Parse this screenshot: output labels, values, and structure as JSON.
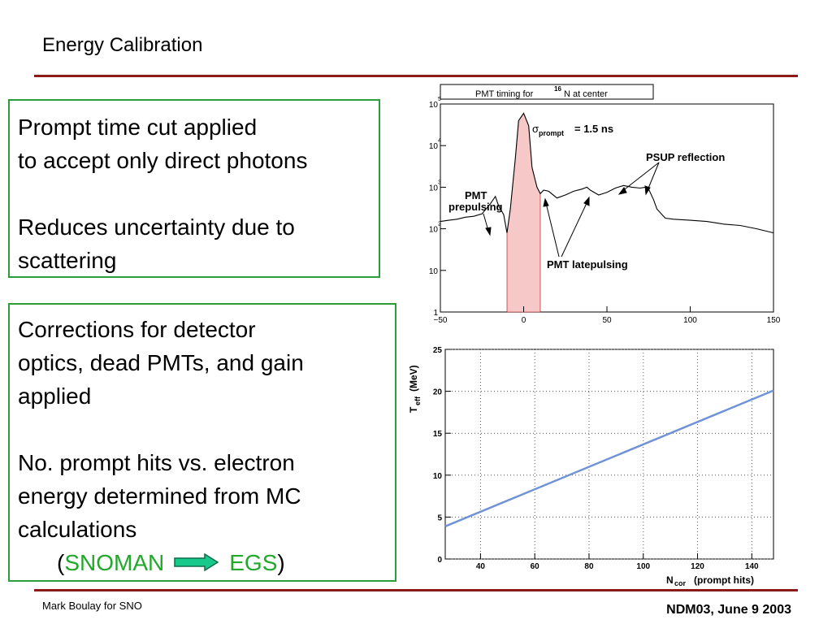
{
  "slide": {
    "title": "Energy Calibration",
    "footer_left": "Mark Boulay for SNO",
    "footer_right": "NDM03, June 9 2003"
  },
  "box1": {
    "line1": "Prompt time cut applied",
    "line2": "to accept only direct photons",
    "line3": "Reduces uncertainty due to",
    "line4": "scattering"
  },
  "box2": {
    "line1": "Corrections for detector",
    "line2": "optics, dead PMTs, and gain",
    "line3": "applied",
    "line4": "No. prompt hits vs. electron",
    "line5": "energy determined from MC",
    "line6": "calculations",
    "open_paren": "(",
    "from": "SNOMAN",
    "to": "EGS",
    "close_paren": ")"
  },
  "colors": {
    "accent_rule": "#8b1a1a",
    "box_border": "#2e9c3a",
    "highlight_text": "#22a82a",
    "arrow_fill": "#17c98a",
    "fit_line": "#6f93d6"
  },
  "chart_data": [
    {
      "type": "line",
      "title": "PMT timing for ¹⁶N at center",
      "title_pre": "PMT timing for",
      "title_sup": "16",
      "title_post": "N at center",
      "xlim": [
        -50,
        150
      ],
      "ylim": [
        1,
        100000
      ],
      "log_y": true,
      "x_ticks": [
        "−50",
        "0",
        "50",
        "100",
        "150"
      ],
      "y_ticks": [
        {
          "base": "10",
          "exp": "5"
        },
        {
          "base": "10",
          "exp": "4"
        },
        {
          "base": "10",
          "exp": "3"
        },
        {
          "base": "10",
          "exp": "2"
        },
        {
          "base": "10",
          "exp": ""
        },
        {
          "base": "1",
          "exp": ""
        }
      ],
      "prompt_window": [
        -10,
        10
      ],
      "series": [
        {
          "x": [
            -50,
            -45,
            -40,
            -35,
            -30,
            -25,
            -20,
            -17,
            -15,
            -12,
            -10,
            -8,
            -5,
            -3,
            0,
            3,
            5,
            8,
            10,
            12,
            15,
            20,
            25,
            30,
            35,
            38,
            40,
            45,
            50,
            55,
            60,
            65,
            70,
            73,
            75,
            78,
            80,
            85,
            90,
            100,
            110,
            120,
            130,
            140,
            150
          ],
          "y": [
            150,
            160,
            170,
            190,
            200,
            230,
            400,
            600,
            350,
            220,
            80,
            300,
            5000,
            40000,
            60000,
            30000,
            3000,
            1000,
            700,
            850,
            800,
            550,
            650,
            800,
            900,
            1000,
            850,
            650,
            750,
            950,
            1100,
            1000,
            950,
            1000,
            900,
            500,
            300,
            180,
            170,
            160,
            150,
            130,
            120,
            100,
            80
          ]
        }
      ],
      "annotations": {
        "sigma_symbol": "σ",
        "sigma_sub": "prompt",
        "sigma_value": "= 1.5 ns",
        "psup": "PSUP reflection",
        "prepulse_1": "PMT",
        "prepulse_2": "prepulsing",
        "latepulse": "PMT latepulsing"
      }
    },
    {
      "type": "line",
      "xlim": [
        27,
        148
      ],
      "ylim": [
        0,
        25
      ],
      "x_ticks": [
        "40",
        "60",
        "80",
        "100",
        "120",
        "140"
      ],
      "y_ticks": [
        "25",
        "20",
        "15",
        "10",
        "5",
        "0"
      ],
      "grid": true,
      "xlabel_main": "N",
      "xlabel_sub": "cor",
      "xlabel_rest": "(prompt hits)",
      "ylabel_main": "T",
      "ylabel_sub": "eff",
      "ylabel_rest": "(MeV)",
      "series": [
        {
          "x": [
            27,
            148
          ],
          "y": [
            3.9,
            20.1
          ]
        }
      ]
    }
  ]
}
